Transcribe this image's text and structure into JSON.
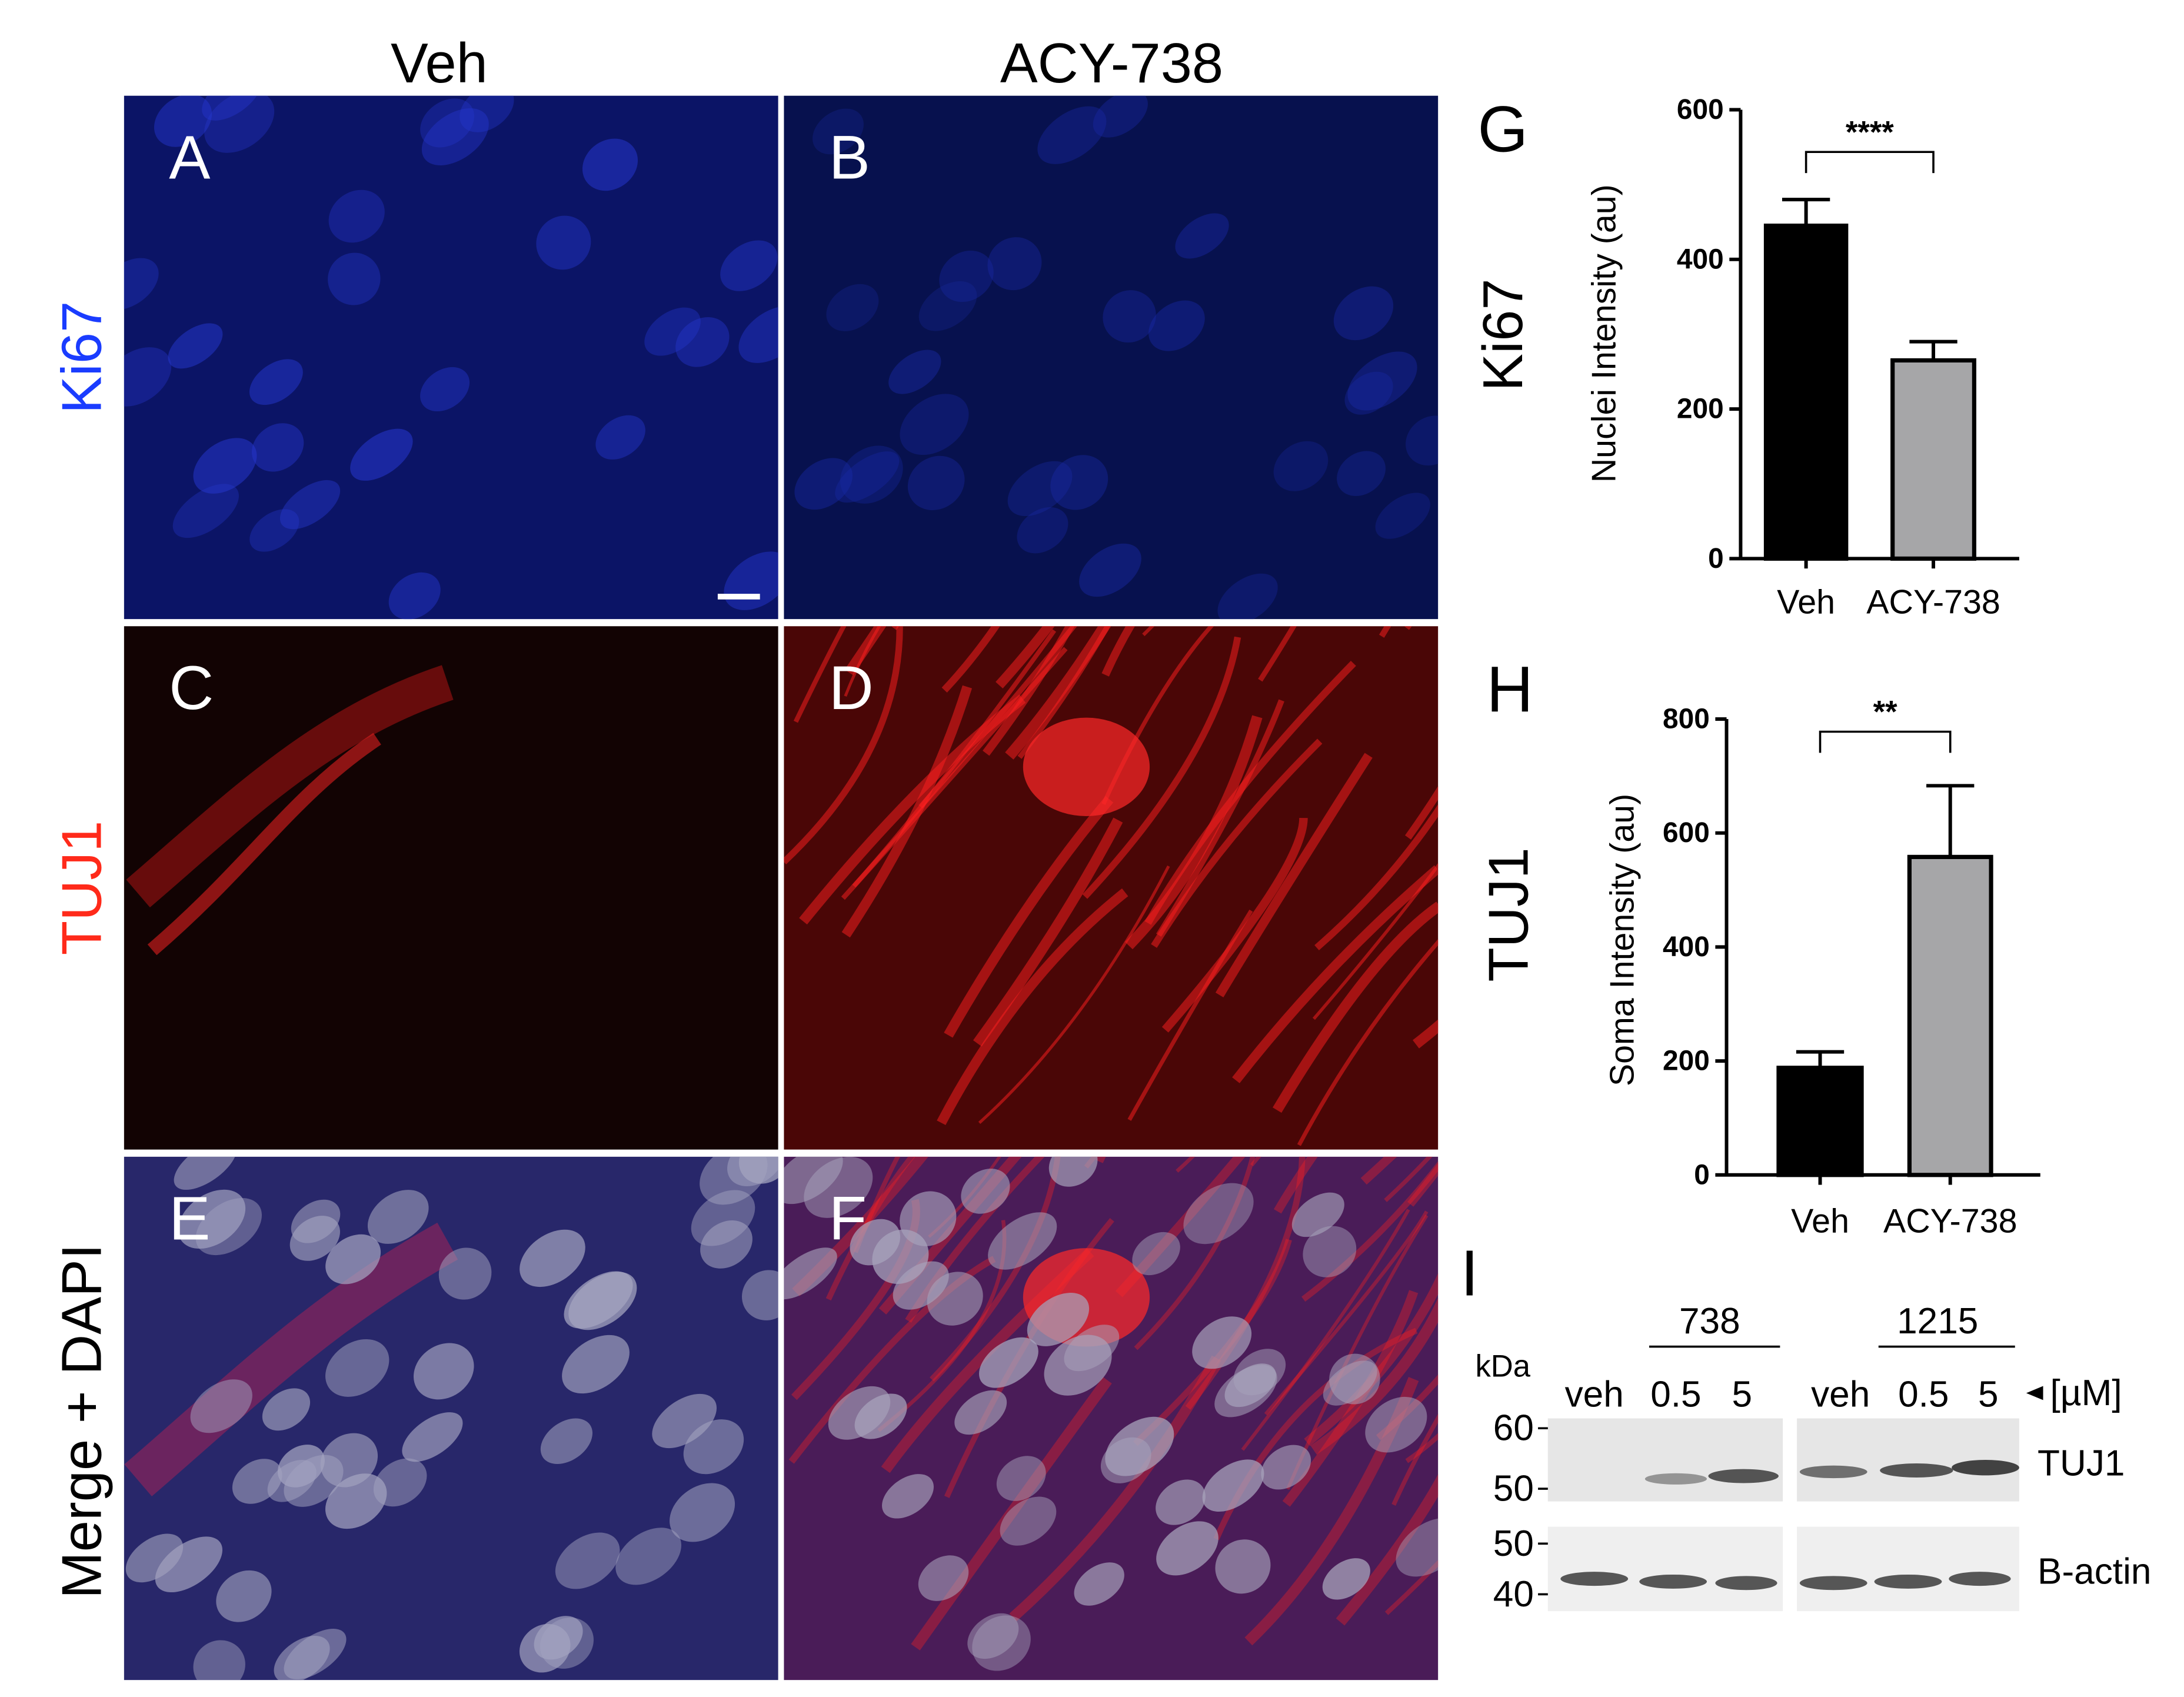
{
  "micrographs": {
    "columns": [
      "Veh",
      "ACY-738"
    ],
    "rows": [
      "Ki67",
      "TUJ1",
      "Merge + DAPI"
    ],
    "panels": [
      "A",
      "B",
      "C",
      "D",
      "E",
      "F"
    ]
  },
  "chart_data": [
    {
      "type": "bar",
      "panel": "G",
      "marker": "Ki67",
      "ylabel": "Nuclei Intensity (au)",
      "categories": [
        "Veh",
        "ACY-738"
      ],
      "values": [
        445,
        265
      ],
      "errors": [
        35,
        25
      ],
      "colors": [
        "#000000",
        "#a6a6a8"
      ],
      "ylim": [
        0,
        600
      ],
      "yticks": [
        0,
        200,
        400,
        600
      ],
      "significance": "****"
    },
    {
      "type": "bar",
      "panel": "H",
      "marker": "TUJ1",
      "ylabel": "Soma Intensity (au)",
      "categories": [
        "Veh",
        "ACY-738"
      ],
      "values": [
        188,
        558
      ],
      "errors": [
        28,
        125
      ],
      "colors": [
        "#000000",
        "#a6a6a8"
      ],
      "ylim": [
        0,
        800
      ],
      "yticks": [
        0,
        200,
        400,
        600,
        800
      ],
      "significance": "**"
    }
  ],
  "blot": {
    "panel": "I",
    "groups": [
      "738",
      "1215"
    ],
    "unit_header": "kDa",
    "lanes": [
      "veh",
      "0.5",
      "5",
      "veh",
      "0.5",
      "5"
    ],
    "concentration_unit": "[µM]",
    "top_markers": [
      "60",
      "50"
    ],
    "bottom_markers": [
      "50",
      "40"
    ],
    "proteins": [
      "TUJ1",
      "B-actin"
    ]
  }
}
